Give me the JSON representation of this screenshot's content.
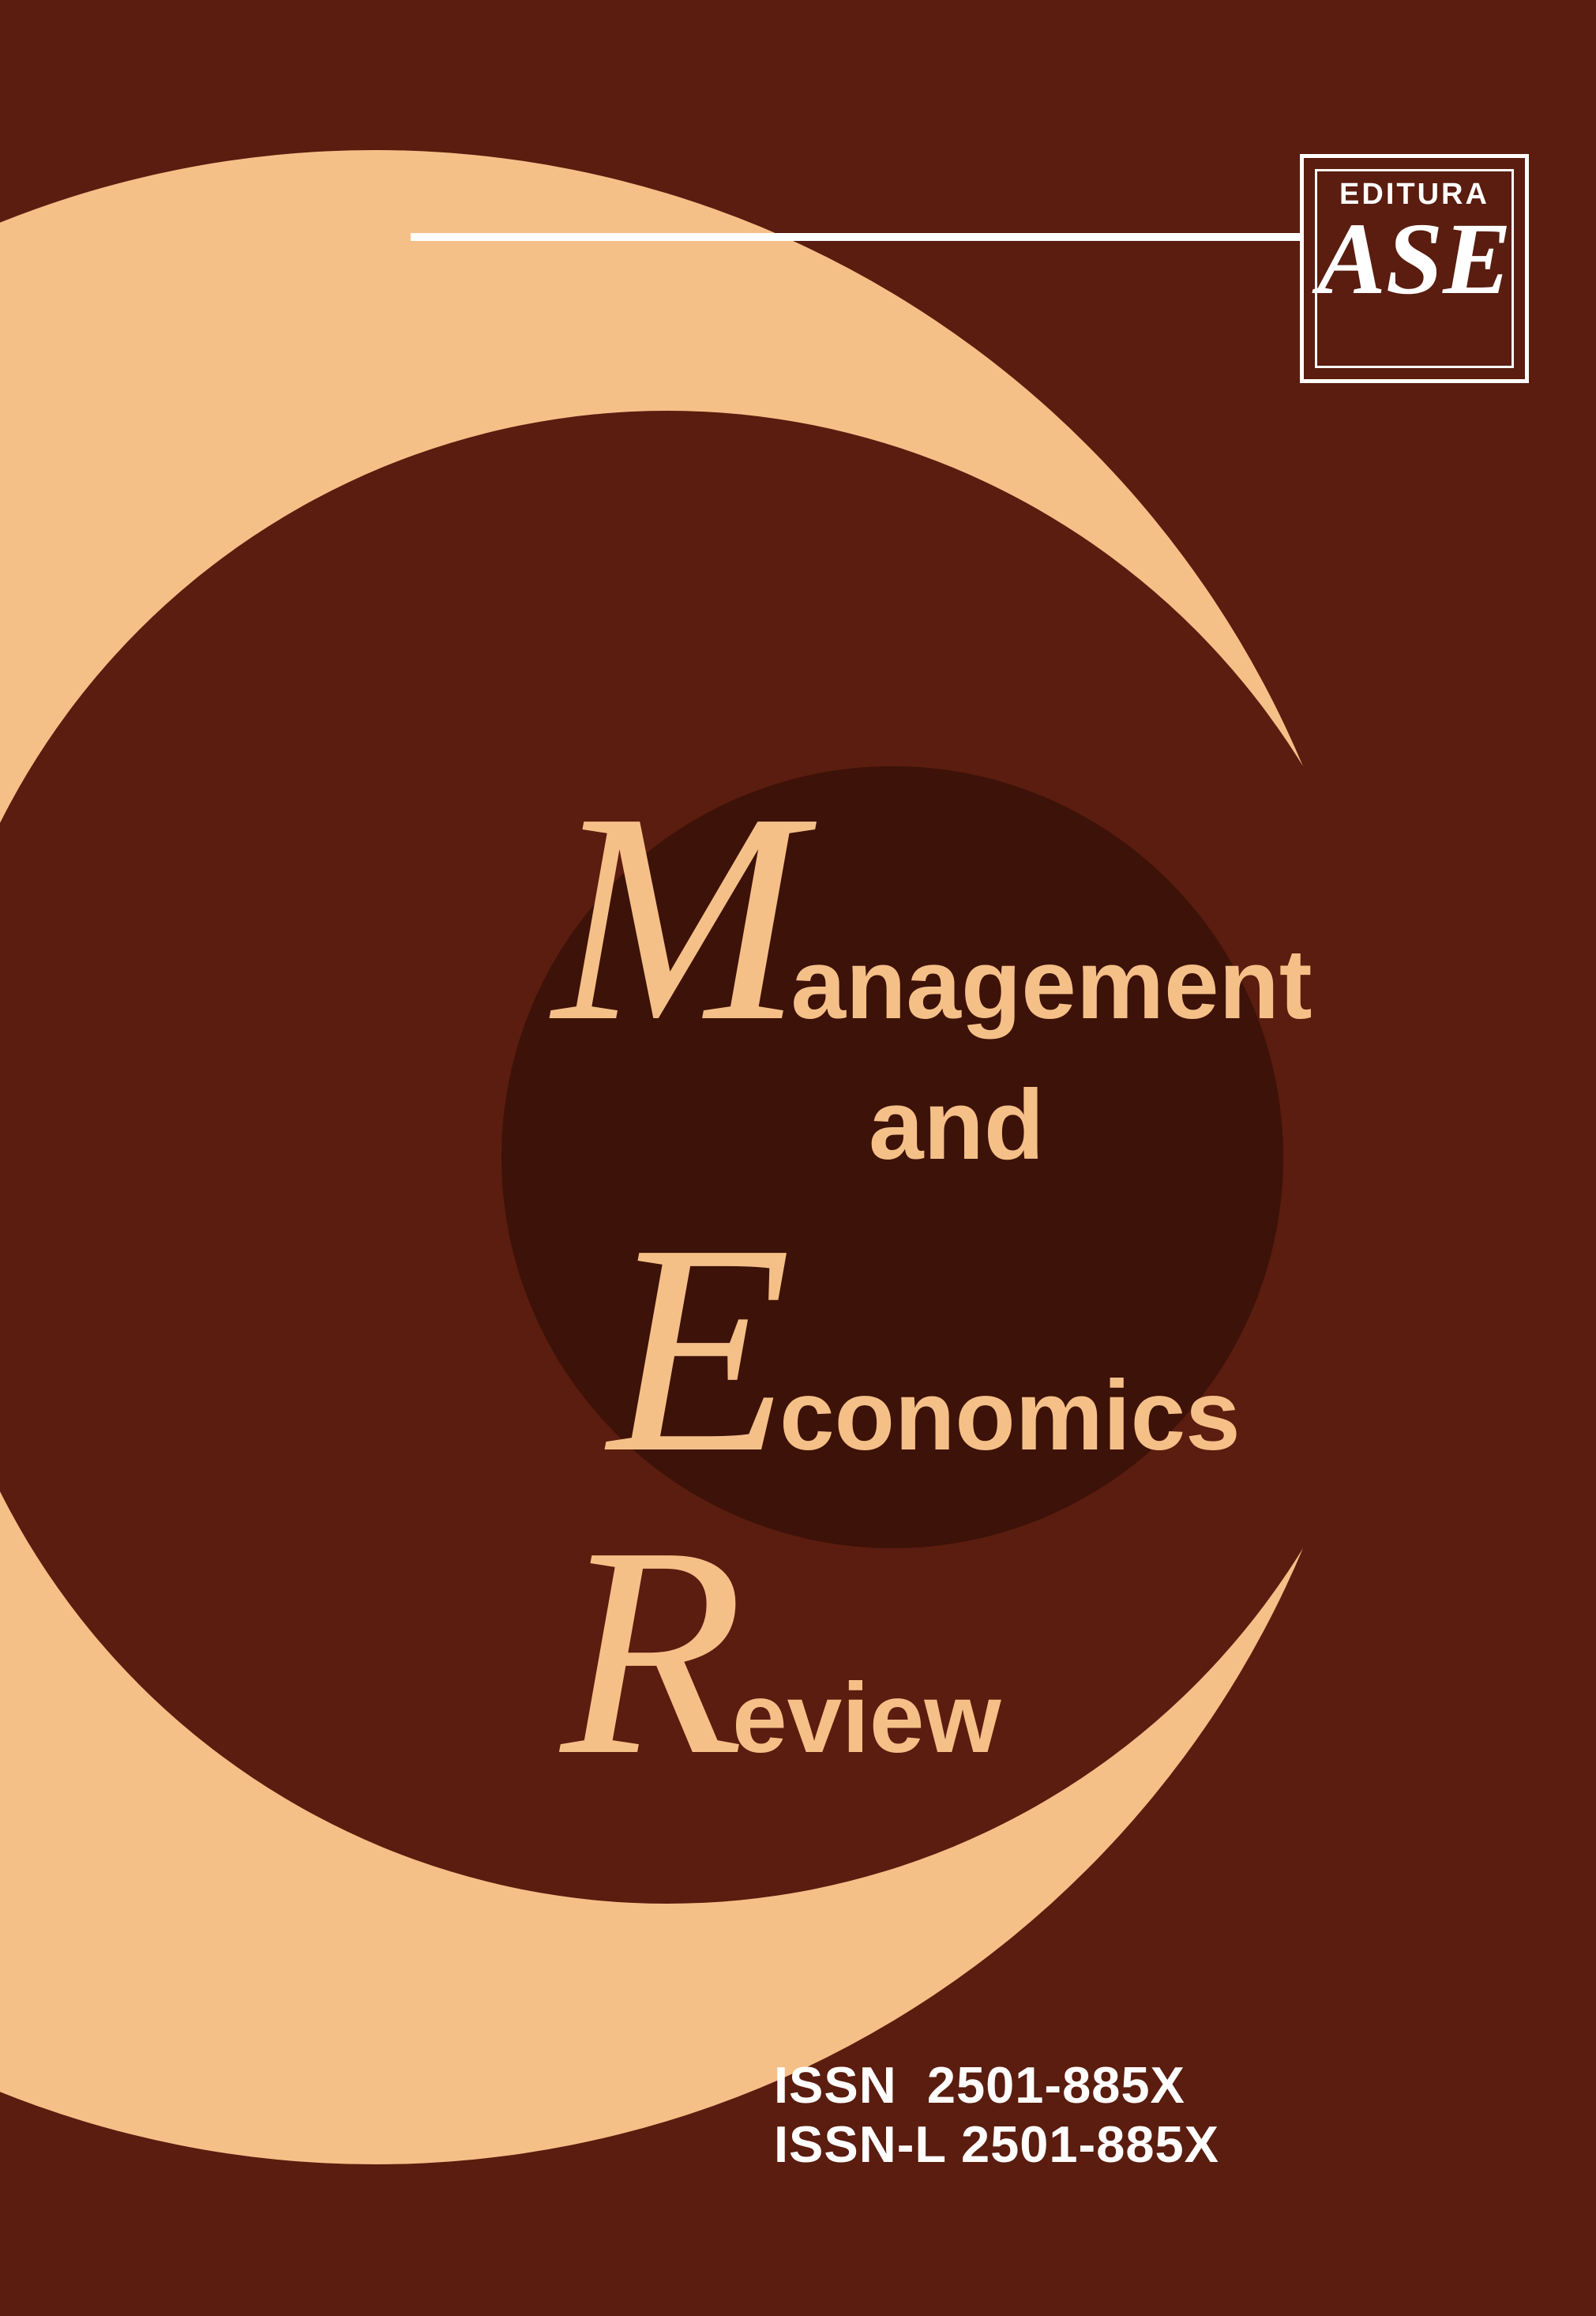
{
  "publisher_logo": {
    "top_text": "EDITURA",
    "main_text": "ASE"
  },
  "title": {
    "line1": {
      "initial": "M",
      "rest": "anagement"
    },
    "line2": "and",
    "line3": {
      "initial": "E",
      "rest": "conomics"
    },
    "line4": {
      "initial": "R",
      "rest": "eview"
    }
  },
  "issn": {
    "line1": "ISSN  2501-885X",
    "line2": "ISSN-L 2501-885X"
  },
  "colors": {
    "background": "#5a1d0f",
    "accent": "#f5c088",
    "dark_circle": "#3d1208",
    "text_light": "#ffffff"
  }
}
